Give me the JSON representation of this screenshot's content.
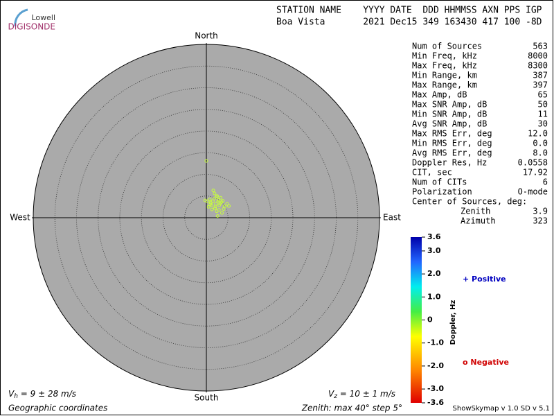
{
  "logo": {
    "top": "Lowell",
    "bottom": "DIGISONDE"
  },
  "header": {
    "line1": "STATION NAME    YYYY DATE  DDD HHMMSS AXN PPS IGP",
    "line2": "Boa Vista       2021 Dec15 349 163430 417 100 -8D"
  },
  "compass": {
    "north": "North",
    "south": "South",
    "west": "West",
    "east": "East"
  },
  "stats": [
    [
      "Num of Sources",
      "563"
    ],
    [
      "Min Freq, kHz",
      "8000"
    ],
    [
      "Max Freq, kHz",
      "8300"
    ],
    [
      "Min Range, km",
      "387"
    ],
    [
      "Max Range, km",
      "397"
    ],
    [
      "Max Amp, dB",
      "65"
    ],
    [
      "Max SNR Amp, dB",
      "50"
    ],
    [
      "Min SNR Amp, dB",
      "11"
    ],
    [
      "Avg SNR Amp, dB",
      "30"
    ],
    [
      "Max RMS Err, deg",
      "12.0"
    ],
    [
      "Min RMS Err, deg",
      "0.0"
    ],
    [
      "Avg RMS Err, deg",
      "8.0"
    ],
    [
      "Doppler Res, Hz",
      "0.0558"
    ],
    [
      "CIT, sec",
      "17.92"
    ],
    [
      "Num of CITs",
      "6"
    ],
    [
      "Polarization",
      "O-mode"
    ]
  ],
  "center": {
    "label": "Center of Sources, deg:",
    "rows": [
      [
        "Zenith",
        "3.9"
      ],
      [
        "Azimuth",
        "323"
      ]
    ]
  },
  "colorbar": {
    "title": "Doppler, Hz",
    "lim": [
      -3.6,
      3.6
    ],
    "ticks": [
      3.6,
      {
        "value": 3,
        "label": "3.0"
      },
      {
        "value": 2,
        "label": "2.0"
      },
      {
        "value": 1,
        "label": "1.0"
      },
      0,
      {
        "value": -1,
        "label": "-1.0"
      },
      {
        "value": -2,
        "label": "-2.0"
      },
      {
        "value": -3,
        "label": "-3.0"
      },
      -3.6
    ]
  },
  "legend": {
    "positive": "+ Positive",
    "negative": "o Negative"
  },
  "sources": {
    "color": "#c8ff3c",
    "x": [
      2.2,
      1.5,
      3.0,
      2.8,
      1.0,
      0.5,
      3.5,
      4.2,
      2.0,
      1.8,
      2.5,
      3.2,
      0.8,
      1.2,
      2.9,
      3.8,
      4.8,
      5.2,
      0.2,
      -0.3,
      1.6,
      2.4,
      3.6,
      2.1,
      1.3,
      2.7,
      3.3,
      0.9,
      4.0,
      2.6,
      0.0,
      1.9,
      2.3
    ],
    "y": [
      3.2,
      3.8,
      2.9,
      4.1,
      3.5,
      2.5,
      3.6,
      2.6,
      2.2,
      4.4,
      5.0,
      3.3,
      4.2,
      2.9,
      1.8,
      3.9,
      3.2,
      2.7,
      3.8,
      4.0,
      6.3,
      1.5,
      1.1,
      2.6,
      1.9,
      3.7,
      4.6,
      3.1,
      2.0,
      0.4,
      13.1,
      5.6,
      4.8
    ]
  },
  "footer": {
    "vh": [
      "V",
      "h",
      " = 9 ± 28 m/s"
    ],
    "vz": [
      "V",
      "z",
      " = 10 ± 1 m/s"
    ],
    "coords": "Geographic coordinates",
    "zenith": "Zenith: max 40°  step 5°",
    "version": "ShowSkymap v 1.0  SD v 5.1"
  }
}
